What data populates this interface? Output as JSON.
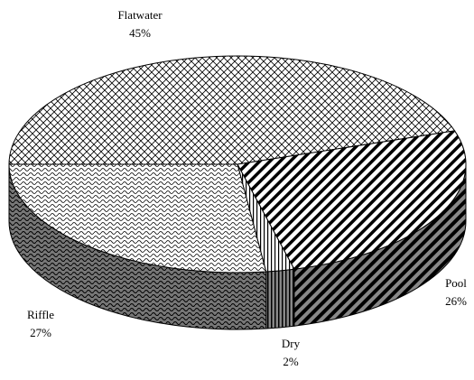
{
  "chart_data": {
    "type": "pie",
    "categories": [
      "Flatwater",
      "Pool",
      "Dry",
      "Riffle"
    ],
    "values": [
      45,
      26,
      2,
      27
    ],
    "value_labels": [
      "45%",
      "26%",
      "2%",
      "27%"
    ]
  }
}
